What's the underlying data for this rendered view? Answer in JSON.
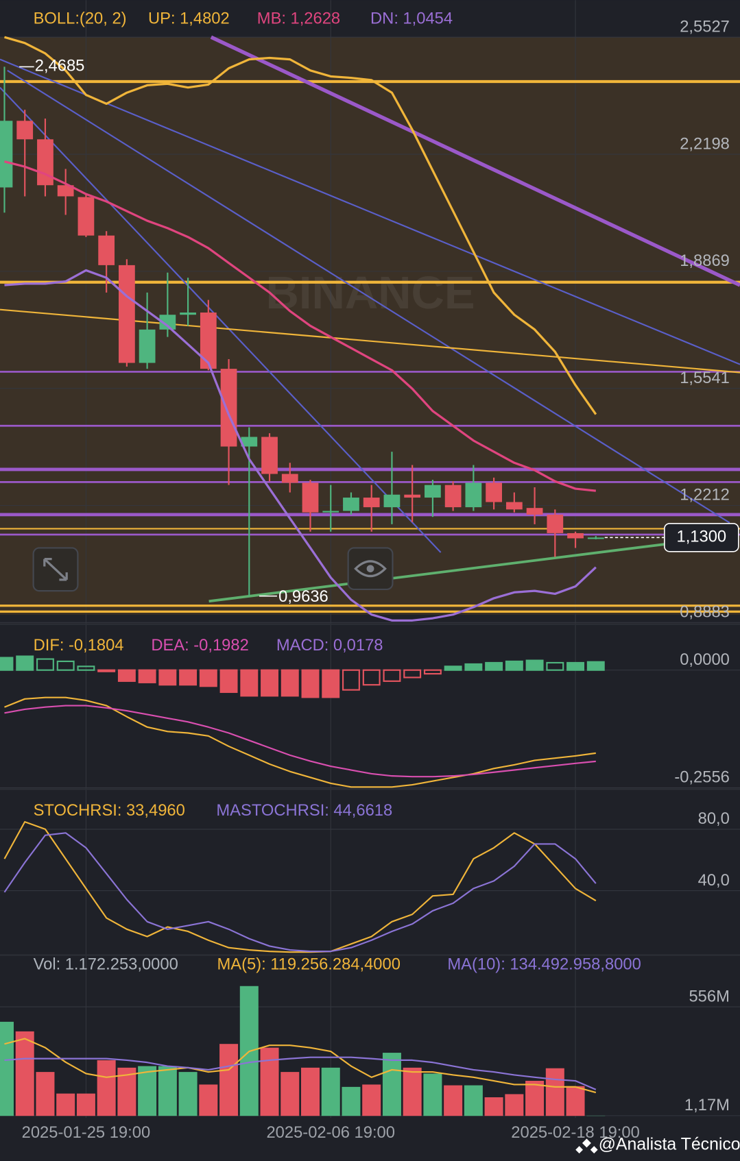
{
  "chart_data": [
    {
      "type": "candlestick",
      "indicator": "BOLL:(20, 2)",
      "indicator_color": "#f0b53a",
      "categories": [
        null,
        null,
        null,
        null,
        "2025-01-25 19:00",
        null,
        null,
        null,
        null,
        null,
        null,
        null,
        null,
        null,
        null,
        null,
        "2025-02-06 19:00",
        null,
        null,
        null,
        null,
        null,
        null,
        null,
        null,
        null,
        null,
        null,
        "2025-02-18 19:00",
        null
      ],
      "open": [
        2.1254,
        2.3148,
        2.2622,
        2.1317,
        2.098,
        1.9886,
        1.9044,
        1.6265,
        1.7213,
        1.7634,
        1.7697,
        1.6097,
        1.3887,
        1.4161,
        1.3108,
        1.2856,
        1.2014,
        1.2056,
        1.2435,
        1.2161,
        1.2519,
        1.2435,
        1.2793,
        1.2161,
        1.2856,
        1.2308,
        1.214,
        1.1951,
        1.1424,
        1.1277
      ],
      "high": [
        2.4685,
        2.3464,
        2.3211,
        2.178,
        2.1064,
        2.0012,
        1.9212,
        1.8265,
        1.8833,
        1.8686,
        1.8055,
        1.6371,
        1.4434,
        1.4266,
        1.3424,
        1.294,
        1.2793,
        1.2582,
        1.2793,
        1.374,
        1.3361,
        1.294,
        1.2898,
        1.3361,
        1.3003,
        1.2582,
        1.2729,
        1.2098,
        1.1467,
        1.134
      ],
      "low": [
        2.0538,
        2.1001,
        2.1001,
        2.0475,
        1.9844,
        1.8265,
        1.616,
        1.6097,
        1.7002,
        1.7318,
        1.6055,
        1.2793,
        0.9636,
        1.2898,
        1.2582,
        1.1467,
        1.1467,
        1.1951,
        1.1467,
        1.1677,
        1.174,
        1.1887,
        1.2056,
        1.2056,
        1.2098,
        1.2014,
        1.1677,
        1.0751,
        1.1003,
        1.125
      ],
      "close": [
        2.3148,
        2.2622,
        2.1317,
        2.1001,
        1.9886,
        1.9044,
        1.6265,
        1.7213,
        1.7634,
        1.7697,
        1.6097,
        1.3887,
        1.4161,
        1.3108,
        1.2856,
        1.2014,
        1.2056,
        1.2435,
        1.2161,
        1.2519,
        1.2435,
        1.2793,
        1.2161,
        1.2856,
        1.2308,
        1.2098,
        1.1951,
        1.1424,
        1.1277,
        1.13
      ],
      "up_color": "#4fb57f",
      "down_color": "#e4545f",
      "ylim": [
        0.8836,
        2.6579
      ],
      "yticks": [
        {
          "value": 2.5527,
          "label": "2,5527"
        },
        {
          "value": 2.2198,
          "label": "2,2198"
        },
        {
          "value": 1.8869,
          "label": "1,8869"
        },
        {
          "value": 1.5541,
          "label": "1,5541"
        },
        {
          "value": 1.2212,
          "label": "1,2212"
        },
        {
          "value": 0.8883,
          "label": "0,8883"
        }
      ],
      "grid": true,
      "price_label": {
        "value": 1.13,
        "label": "1,1300"
      },
      "high_label": {
        "value": 2.4685,
        "label": "2,4685"
      },
      "low_label": {
        "value": 0.9636,
        "label": "0,9636"
      },
      "series": [
        {
          "name": "UP:",
          "type": "line",
          "color": "#f0b53a",
          "current": {
            "value": 1.4802,
            "label": "1,4802"
          },
          "values": [
            2.5527,
            2.5358,
            2.5064,
            2.4579,
            2.3885,
            2.3632,
            2.3948,
            2.4158,
            2.4201,
            2.4095,
            2.418,
            2.4643,
            2.4895,
            2.4937,
            2.4895,
            2.4579,
            2.4411,
            2.4369,
            2.4306,
            2.3948,
            2.2896,
            2.1738,
            2.058,
            1.9423,
            1.8265,
            1.7634,
            1.7213,
            1.6581,
            1.5634,
            1.4802
          ]
        },
        {
          "name": "MB:",
          "type": "line",
          "color": "#e0457f",
          "current": {
            "value": 1.2628,
            "label": "1,2628"
          },
          "values": [
            2.1991,
            2.1843,
            2.1633,
            2.1359,
            2.1064,
            2.0854,
            2.058,
            2.0307,
            2.0096,
            1.9844,
            1.9528,
            1.9107,
            1.8686,
            1.8265,
            1.7739,
            1.7318,
            1.7002,
            1.6686,
            1.6371,
            1.6055,
            1.5529,
            1.4897,
            1.4476,
            1.4055,
            1.374,
            1.3424,
            1.3214,
            1.2898,
            1.2687,
            1.2628
          ]
        },
        {
          "name": "DN:",
          "type": "line",
          "color": "#9b6fd6",
          "current": {
            "value": 1.0454,
            "label": "1,0454"
          },
          "values": [
            1.8476,
            1.8518,
            1.8518,
            1.8581,
            1.8896,
            1.8686,
            1.816,
            1.7739,
            1.7318,
            1.6792,
            1.6265,
            1.4792,
            1.3529,
            1.2687,
            1.1845,
            1.1003,
            1.0162,
            0.953,
            0.9109,
            0.8941,
            0.8941,
            0.9004,
            0.9109,
            0.932,
            0.9572,
            0.9741,
            0.9783,
            0.9699,
            0.9909,
            1.0454
          ]
        }
      ]
    },
    {
      "type": "macd",
      "up_color": "#4fb57f",
      "down_color": "#e4545f",
      "ylim": [
        -0.2572,
        0.0965
      ],
      "yticks": [
        {
          "value": 0,
          "label": "0,0000"
        },
        {
          "value": -0.2556,
          "label": "-0,2556"
        }
      ],
      "series": [
        {
          "name": "DIF:",
          "type": "line",
          "color": "#f0b53a",
          "current": {
            "value": -0.1804,
            "label": "-0,1804"
          },
          "values": [
            -0.0804,
            -0.0627,
            -0.0595,
            -0.0595,
            -0.0659,
            -0.0772,
            -0.1013,
            -0.1238,
            -0.1334,
            -0.1366,
            -0.1431,
            -0.1656,
            -0.1849,
            -0.2042,
            -0.2202,
            -0.2331,
            -0.246,
            -0.254,
            -0.254,
            -0.254,
            -0.2492,
            -0.2411,
            -0.2331,
            -0.2251,
            -0.2138,
            -0.2058,
            -0.1961,
            -0.1913,
            -0.1865,
            -0.1804
          ]
        },
        {
          "name": "DEA:",
          "type": "line",
          "color": "#d94fb0",
          "current": {
            "value": -0.1982,
            "label": "-0,1982"
          },
          "values": [
            -0.0932,
            -0.0852,
            -0.0804,
            -0.0772,
            -0.0772,
            -0.082,
            -0.0884,
            -0.0965,
            -0.1045,
            -0.1125,
            -0.1238,
            -0.1366,
            -0.1527,
            -0.1688,
            -0.1849,
            -0.1977,
            -0.209,
            -0.217,
            -0.2251,
            -0.2299,
            -0.2315,
            -0.2315,
            -0.2299,
            -0.2267,
            -0.2219,
            -0.217,
            -0.2122,
            -0.2074,
            -0.2025,
            -0.1982
          ]
        },
        {
          "name": "MACD:",
          "type": "histogram",
          "color": "#9b6fd6",
          "current": {
            "value": 0.0178,
            "label": "0,0178"
          },
          "values": [
            0.027,
            0.03,
            0.024,
            0.019,
            0.008,
            -0.003,
            -0.024,
            -0.027,
            -0.032,
            -0.032,
            -0.035,
            -0.048,
            -0.056,
            -0.056,
            -0.056,
            -0.059,
            -0.059,
            -0.043,
            -0.032,
            -0.024,
            -0.016,
            -0.008,
            0.008,
            0.013,
            0.016,
            0.019,
            0.021,
            0.016,
            0.016,
            0.0178
          ]
        }
      ]
    },
    {
      "type": "line",
      "ylim": [
        -1.93,
        105.06
      ],
      "yticks": [
        {
          "value": 80,
          "label": "80,0"
        },
        {
          "value": 40,
          "label": "40,0"
        }
      ],
      "series": [
        {
          "name": "STOCHRSI:",
          "type": "line",
          "color": "#f0b53a",
          "current": {
            "value": 33.496,
            "label": "33,4960"
          },
          "values": [
            60.7,
            84.8,
            80.0,
            60.7,
            41.4,
            22.2,
            14.9,
            10.1,
            16.4,
            13.5,
            7.7,
            2.9,
            1.4,
            0.5,
            0.0,
            0.0,
            0.5,
            5.3,
            10.1,
            19.8,
            24.6,
            36.6,
            37.6,
            60.7,
            67.9,
            77.6,
            70.4,
            55.9,
            41.4,
            33.496
          ]
        },
        {
          "name": "MASTOCHRSI:",
          "type": "line",
          "color": "#8b74d6",
          "current": {
            "value": 44.6618,
            "label": "44,6618"
          },
          "values": [
            39.0,
            58.3,
            76.1,
            77.6,
            67.9,
            51.1,
            34.2,
            19.8,
            14.9,
            17.3,
            19.8,
            14.9,
            8.7,
            3.9,
            1.4,
            0.5,
            0.5,
            2.9,
            7.7,
            13.5,
            18.3,
            26.9,
            31.8,
            41.4,
            46.3,
            55.9,
            70.4,
            70.4,
            60.7,
            44.6618
          ]
        }
      ]
    },
    {
      "type": "volume",
      "up_color": "#4fb57f",
      "down_color": "#e4545f",
      "ylim": [
        -10200000,
        820100000
      ],
      "yticks": [
        {
          "value": 556000000,
          "label": "556M"
        },
        {
          "value": 1170000,
          "label": "1,17M"
        }
      ],
      "series": [
        {
          "name": "Vol:",
          "type": "volume",
          "color": "#aeb4bc",
          "current": {
            "value": 1172253,
            "label": "1.172.253,0000"
          },
          "values": [
            480000000,
            431000000,
            224000000,
            114000000,
            114000000,
            284000000,
            246000000,
            254000000,
            254000000,
            224000000,
            160000000,
            367000000,
            662000000,
            348000000,
            224000000,
            246000000,
            246000000,
            148000000,
            160000000,
            322000000,
            246000000,
            216000000,
            156000000,
            156000000,
            95000000,
            111000000,
            179000000,
            243000000,
            152000000,
            1172253
          ]
        },
        {
          "name": "MA(5):",
          "type": "line",
          "color": "#f0b53a",
          "current": {
            "value": 119256284.4,
            "label": "119.256.284,4000"
          },
          "values": [
            367000000,
            394000000,
            348000000,
            274000000,
            216000000,
            197000000,
            209000000,
            224000000,
            235000000,
            246000000,
            224000000,
            235000000,
            329000000,
            360000000,
            360000000,
            348000000,
            329000000,
            254000000,
            197000000,
            235000000,
            224000000,
            224000000,
            209000000,
            197000000,
            179000000,
            160000000,
            160000000,
            148000000,
            148000000,
            119256284.4
          ]
        },
        {
          "name": "MA(10):",
          "type": "line",
          "color": "#8b74d6",
          "current": {
            "value": 134492958.8,
            "label": "134.492.958,8000"
          },
          "values": [
            284000000,
            292000000,
            292000000,
            292000000,
            292000000,
            292000000,
            284000000,
            273000000,
            254000000,
            246000000,
            235000000,
            254000000,
            273000000,
            284000000,
            292000000,
            299000000,
            299000000,
            299000000,
            292000000,
            284000000,
            284000000,
            273000000,
            254000000,
            235000000,
            224000000,
            209000000,
            197000000,
            186000000,
            179000000,
            134492958.8
          ]
        }
      ]
    }
  ],
  "watermark": "BINANCE",
  "footer": "@Analista Técnico"
}
